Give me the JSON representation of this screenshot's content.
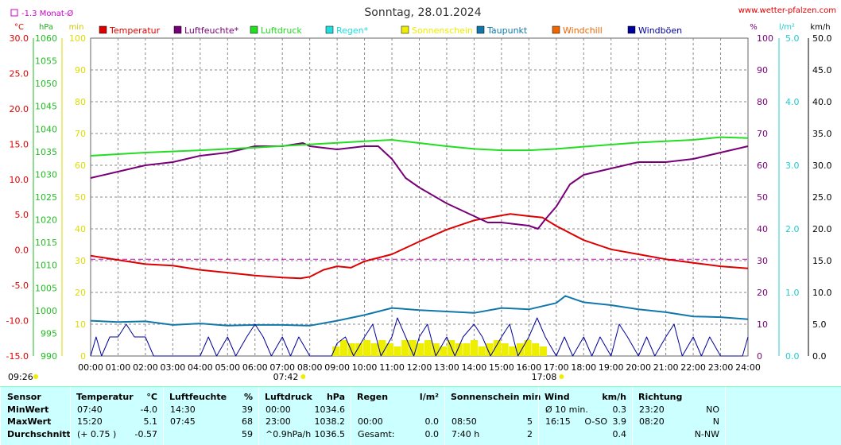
{
  "header": {
    "title": "Sonntag, 28.01.2024",
    "source": "www.wetter-pfalzen.com",
    "month_avg": "-1.3 Monat-Ø",
    "unit_celsius": "°C",
    "unit_hpa": "hPa",
    "unit_min": "min",
    "unit_percent": "%",
    "unit_rain": "l/m²",
    "unit_wind": "km/h"
  },
  "chart_data": {
    "type": "line",
    "x_labels": [
      "00:00",
      "01:00",
      "02:00",
      "03:00",
      "04:00",
      "05:00",
      "06:00",
      "07:00",
      "08:00",
      "09:00",
      "10:00",
      "11:00",
      "12:00",
      "13:00",
      "14:00",
      "15:00",
      "16:00",
      "17:00",
      "18:00",
      "19:00",
      "20:00",
      "21:00",
      "22:00",
      "23:00",
      "24:00"
    ],
    "legend": [
      {
        "label": "Temperatur",
        "color": "#dd0000"
      },
      {
        "label": "Luftfeuchte*",
        "color": "#770077"
      },
      {
        "label": "Luftdruck",
        "color": "#22dd22"
      },
      {
        "label": "Regen*",
        "color": "#22dddd"
      },
      {
        "label": "Sonnenschein",
        "color": "#eeee00"
      },
      {
        "label": "Taupunkt",
        "color": "#1177aa"
      },
      {
        "label": "Windchill",
        "color": "#ee6600"
      },
      {
        "label": "Windböen",
        "color": "#000099"
      }
    ],
    "axes": {
      "temperature": {
        "min": -15,
        "max": 30,
        "ticks": [
          "30.0",
          "25.0",
          "20.0",
          "15.0",
          "10.0",
          "5.0",
          "0.0",
          "-5.0",
          "-10.0",
          "-15.0"
        ]
      },
      "pressure": {
        "min": 990,
        "max": 1060,
        "ticks": [
          "1060",
          "1055",
          "1050",
          "1045",
          "1040",
          "1035",
          "1030",
          "1025",
          "1020",
          "1015",
          "1010",
          "1005",
          "1000",
          "995",
          "990"
        ]
      },
      "sunshine_min": {
        "min": 0,
        "max": 100,
        "ticks": [
          "100",
          "90",
          "80",
          "70",
          "60",
          "50",
          "40",
          "30",
          "20",
          "10",
          "0"
        ]
      },
      "humidity": {
        "min": 0,
        "max": 100,
        "ticks": [
          "100",
          "90",
          "80",
          "70",
          "60",
          "50",
          "40",
          "30",
          "20",
          "10",
          "0"
        ]
      },
      "rain": {
        "min": 0,
        "max": 5,
        "ticks": [
          "5.0",
          "4.0",
          "3.0",
          "2.0",
          "1.0",
          "0.0"
        ]
      },
      "wind": {
        "min": 0,
        "max": 50,
        "ticks": [
          "50.0",
          "45.0",
          "40.0",
          "35.0",
          "30.0",
          "25.0",
          "20.0",
          "15.0",
          "10.0",
          "5.0",
          "0.0"
        ]
      }
    },
    "month_avg_temperature": -1.3,
    "series": [
      {
        "name": "Temperatur",
        "axis": "temperature",
        "color": "#dd0000",
        "points": [
          [
            0,
            -0.8
          ],
          [
            1,
            -1.4
          ],
          [
            2,
            -2.0
          ],
          [
            3,
            -2.2
          ],
          [
            4,
            -2.8
          ],
          [
            5,
            -3.2
          ],
          [
            6,
            -3.6
          ],
          [
            7,
            -3.9
          ],
          [
            7.67,
            -4.0
          ],
          [
            8,
            -3.8
          ],
          [
            8.5,
            -2.8
          ],
          [
            9,
            -2.3
          ],
          [
            9.5,
            -2.5
          ],
          [
            10,
            -1.6
          ],
          [
            11,
            -0.6
          ],
          [
            12,
            1.2
          ],
          [
            13,
            2.9
          ],
          [
            14,
            4.2
          ],
          [
            15,
            4.9
          ],
          [
            15.33,
            5.1
          ],
          [
            16,
            4.8
          ],
          [
            16.5,
            4.6
          ],
          [
            17,
            3.4
          ],
          [
            18,
            1.4
          ],
          [
            19,
            0.1
          ],
          [
            20,
            -0.6
          ],
          [
            21,
            -1.3
          ],
          [
            22,
            -1.8
          ],
          [
            23,
            -2.3
          ],
          [
            24,
            -2.6
          ]
        ]
      },
      {
        "name": "Luftfeuchte*",
        "axis": "humidity",
        "color": "#770077",
        "points": [
          [
            0,
            56
          ],
          [
            1,
            58
          ],
          [
            2,
            60
          ],
          [
            3,
            61
          ],
          [
            4,
            63
          ],
          [
            5,
            64
          ],
          [
            6,
            66
          ],
          [
            7,
            66
          ],
          [
            7.75,
            67
          ],
          [
            8,
            66
          ],
          [
            9,
            65
          ],
          [
            10,
            66
          ],
          [
            10.5,
            66
          ],
          [
            11,
            62
          ],
          [
            11.5,
            56
          ],
          [
            12,
            53
          ],
          [
            13,
            48
          ],
          [
            14,
            44
          ],
          [
            14.5,
            42
          ],
          [
            15,
            42
          ],
          [
            16,
            41
          ],
          [
            16.33,
            40
          ],
          [
            16.6,
            43
          ],
          [
            17,
            47
          ],
          [
            17.5,
            54
          ],
          [
            18,
            57
          ],
          [
            19,
            59
          ],
          [
            20,
            61
          ],
          [
            21,
            61
          ],
          [
            22,
            62
          ],
          [
            23,
            64
          ],
          [
            24,
            66
          ]
        ]
      },
      {
        "name": "Luftdruck",
        "axis": "pressure",
        "color": "#22dd22",
        "points": [
          [
            0,
            1034.1
          ],
          [
            2,
            1034.8
          ],
          [
            4,
            1035.3
          ],
          [
            6,
            1035.9
          ],
          [
            8,
            1036.6
          ],
          [
            10,
            1037.3
          ],
          [
            11,
            1037.6
          ],
          [
            12,
            1036.9
          ],
          [
            13,
            1036.2
          ],
          [
            14,
            1035.6
          ],
          [
            15,
            1035.3
          ],
          [
            16,
            1035.3
          ],
          [
            17,
            1035.6
          ],
          [
            18,
            1036.1
          ],
          [
            20,
            1037.0
          ],
          [
            22,
            1037.6
          ],
          [
            23,
            1038.2
          ],
          [
            24,
            1038.0
          ]
        ]
      },
      {
        "name": "Taupunkt",
        "axis": "temperature",
        "color": "#1177aa",
        "points": [
          [
            0,
            -10.0
          ],
          [
            1,
            -10.2
          ],
          [
            2,
            -10.1
          ],
          [
            3,
            -10.6
          ],
          [
            4,
            -10.4
          ],
          [
            5,
            -10.7
          ],
          [
            6,
            -10.6
          ],
          [
            7,
            -10.6
          ],
          [
            8,
            -10.7
          ],
          [
            9,
            -10.0
          ],
          [
            10,
            -9.2
          ],
          [
            11,
            -8.2
          ],
          [
            12,
            -8.5
          ],
          [
            13,
            -8.7
          ],
          [
            14,
            -8.9
          ],
          [
            15,
            -8.2
          ],
          [
            16,
            -8.4
          ],
          [
            17,
            -7.5
          ],
          [
            17.33,
            -6.5
          ],
          [
            18,
            -7.4
          ],
          [
            19,
            -7.8
          ],
          [
            20,
            -8.4
          ],
          [
            21,
            -8.8
          ],
          [
            22,
            -9.4
          ],
          [
            23,
            -9.5
          ],
          [
            24,
            -9.8
          ]
        ]
      },
      {
        "name": "Windböen",
        "axis": "wind",
        "color": "#000099",
        "points": [
          [
            0,
            0
          ],
          [
            0.2,
            3
          ],
          [
            0.4,
            0
          ],
          [
            0.7,
            3
          ],
          [
            1,
            3
          ],
          [
            1.3,
            5
          ],
          [
            1.6,
            3
          ],
          [
            2,
            3
          ],
          [
            2.3,
            0
          ],
          [
            2.6,
            0
          ],
          [
            3,
            0
          ],
          [
            3.5,
            0
          ],
          [
            4,
            0
          ],
          [
            4.3,
            3
          ],
          [
            4.6,
            0
          ],
          [
            5,
            3
          ],
          [
            5.3,
            0
          ],
          [
            5.7,
            3
          ],
          [
            6,
            5
          ],
          [
            6.3,
            3
          ],
          [
            6.6,
            0
          ],
          [
            7,
            3
          ],
          [
            7.3,
            0
          ],
          [
            7.6,
            3
          ],
          [
            8,
            0
          ],
          [
            8.5,
            0
          ],
          [
            8.8,
            0
          ],
          [
            9,
            2
          ],
          [
            9.3,
            3
          ],
          [
            9.6,
            0
          ],
          [
            10,
            3
          ],
          [
            10.3,
            5
          ],
          [
            10.6,
            0
          ],
          [
            11,
            3
          ],
          [
            11.2,
            6
          ],
          [
            11.5,
            3
          ],
          [
            11.8,
            0
          ],
          [
            12,
            3
          ],
          [
            12.3,
            5
          ],
          [
            12.6,
            0
          ],
          [
            13,
            3
          ],
          [
            13.3,
            0
          ],
          [
            13.6,
            3
          ],
          [
            14,
            5
          ],
          [
            14.3,
            3
          ],
          [
            14.6,
            0
          ],
          [
            15,
            3
          ],
          [
            15.3,
            5
          ],
          [
            15.6,
            0
          ],
          [
            16,
            3
          ],
          [
            16.3,
            6
          ],
          [
            16.6,
            3
          ],
          [
            17,
            0
          ],
          [
            17.3,
            3
          ],
          [
            17.6,
            0
          ],
          [
            18,
            3
          ],
          [
            18.3,
            0
          ],
          [
            18.6,
            3
          ],
          [
            19,
            0
          ],
          [
            19.3,
            5
          ],
          [
            19.6,
            3
          ],
          [
            20,
            0
          ],
          [
            20.3,
            3
          ],
          [
            20.6,
            0
          ],
          [
            21,
            3
          ],
          [
            21.3,
            5
          ],
          [
            21.6,
            0
          ],
          [
            22,
            3
          ],
          [
            22.3,
            0
          ],
          [
            22.6,
            3
          ],
          [
            23,
            0
          ],
          [
            23.5,
            0
          ],
          [
            23.8,
            0
          ],
          [
            24,
            3
          ]
        ]
      }
    ],
    "sunshine": {
      "axis": "sunshine_min",
      "color": "#eeee00",
      "from": 8.83,
      "to": 16.67,
      "values": [
        3,
        5,
        4,
        4,
        5,
        4,
        5,
        4,
        3,
        5,
        5,
        4,
        5,
        4,
        3,
        5,
        4,
        4,
        5,
        3,
        4,
        5,
        4,
        3,
        4,
        5,
        4,
        3
      ]
    },
    "markers": {
      "sunrise": "07:42",
      "sunset": "17:08",
      "day_start": "09:26"
    }
  },
  "stats": {
    "sensor": {
      "header": "Sensor",
      "rows": [
        "MinWert",
        "MaxWert",
        "Durchschnitt"
      ]
    },
    "temperature": {
      "header": "Temperatur",
      "unit": "°C",
      "rows": [
        {
          "time": "07:40",
          "value": "-4.0"
        },
        {
          "time": "15:20",
          "value": "5.1"
        },
        {
          "time": "(+ 0.75 )",
          "value": "-0.57"
        }
      ]
    },
    "humidity": {
      "header": "Luftfeuchte",
      "unit": "%",
      "rows": [
        {
          "time": "14:30",
          "value": "39"
        },
        {
          "time": "07:45",
          "value": "68"
        },
        {
          "time": "",
          "value": "59"
        }
      ]
    },
    "pressure": {
      "header": "Luftdruck",
      "unit": "hPa",
      "rows": [
        {
          "time": "00:00",
          "value": "1034.6"
        },
        {
          "time": "23:00",
          "value": "1038.2"
        },
        {
          "time": "^0.9hPa/h",
          "value": "1036.5"
        }
      ]
    },
    "rain": {
      "header": "Regen",
      "unit": "l/m²",
      "rows": [
        {
          "time": "",
          "value": ""
        },
        {
          "time": "00:00",
          "value": "0.0"
        },
        {
          "time": "Gesamt:",
          "value": "0.0"
        }
      ]
    },
    "sunshine": {
      "header": "Sonnenschein min",
      "rows": [
        {
          "time": "",
          "value": ""
        },
        {
          "time": "08:50",
          "value": "5"
        },
        {
          "time": "7:40 h",
          "value": "2"
        }
      ]
    },
    "wind": {
      "header": "Wind",
      "unit": "km/h",
      "rows": [
        {
          "time": "Ø 10 min.",
          "dir": "",
          "value": "0.3"
        },
        {
          "time": "16:15",
          "dir": "O-SO",
          "value": "3.9"
        },
        {
          "time": "",
          "dir": "",
          "value": "0.4"
        }
      ]
    },
    "direction": {
      "header": "Richtung",
      "rows": [
        {
          "time": "23:20",
          "value": "NO"
        },
        {
          "time": "08:20",
          "value": "N"
        },
        {
          "time": "",
          "value": "N-NW"
        }
      ]
    }
  }
}
